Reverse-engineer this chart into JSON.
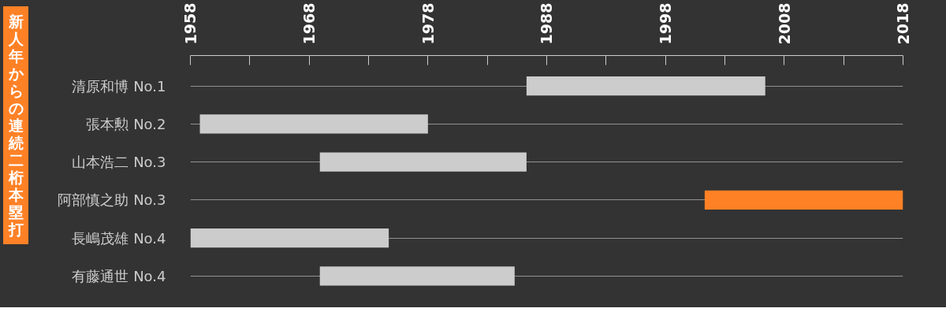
{
  "chart_data": {
    "type": "bar",
    "orientation": "horizontal",
    "title": "新人年からの連続二桁本塁打",
    "categories": [
      "清原和博 No.1",
      "張本勲 No.2",
      "山本浩二 No.3",
      "阿部慎之助 No.3",
      "長嶋茂雄 No.4",
      "有藤通世 No.4"
    ],
    "base": [
      1986.3,
      1958.8,
      1968.9,
      2001.3,
      1958,
      1968.9
    ],
    "values": [
      20.1,
      19.2,
      17.4,
      16.7,
      16.7,
      16.4
    ],
    "colors": [
      "#cccccc",
      "#cccccc",
      "#cccccc",
      "#ff8126",
      "#cccccc",
      "#cccccc"
    ],
    "xlim": [
      1958,
      2018
    ],
    "xticks": [
      1958,
      {
        "value": 1963,
        "label": null
      },
      1968,
      {
        "value": 1973,
        "label": null
      },
      1978,
      {
        "value": 1983,
        "label": null
      },
      1988,
      {
        "value": 1993,
        "label": null
      },
      1998,
      {
        "value": 2003,
        "label": null
      },
      2008,
      {
        "value": 2013,
        "label": null
      },
      2018
    ],
    "grid": "y"
  }
}
